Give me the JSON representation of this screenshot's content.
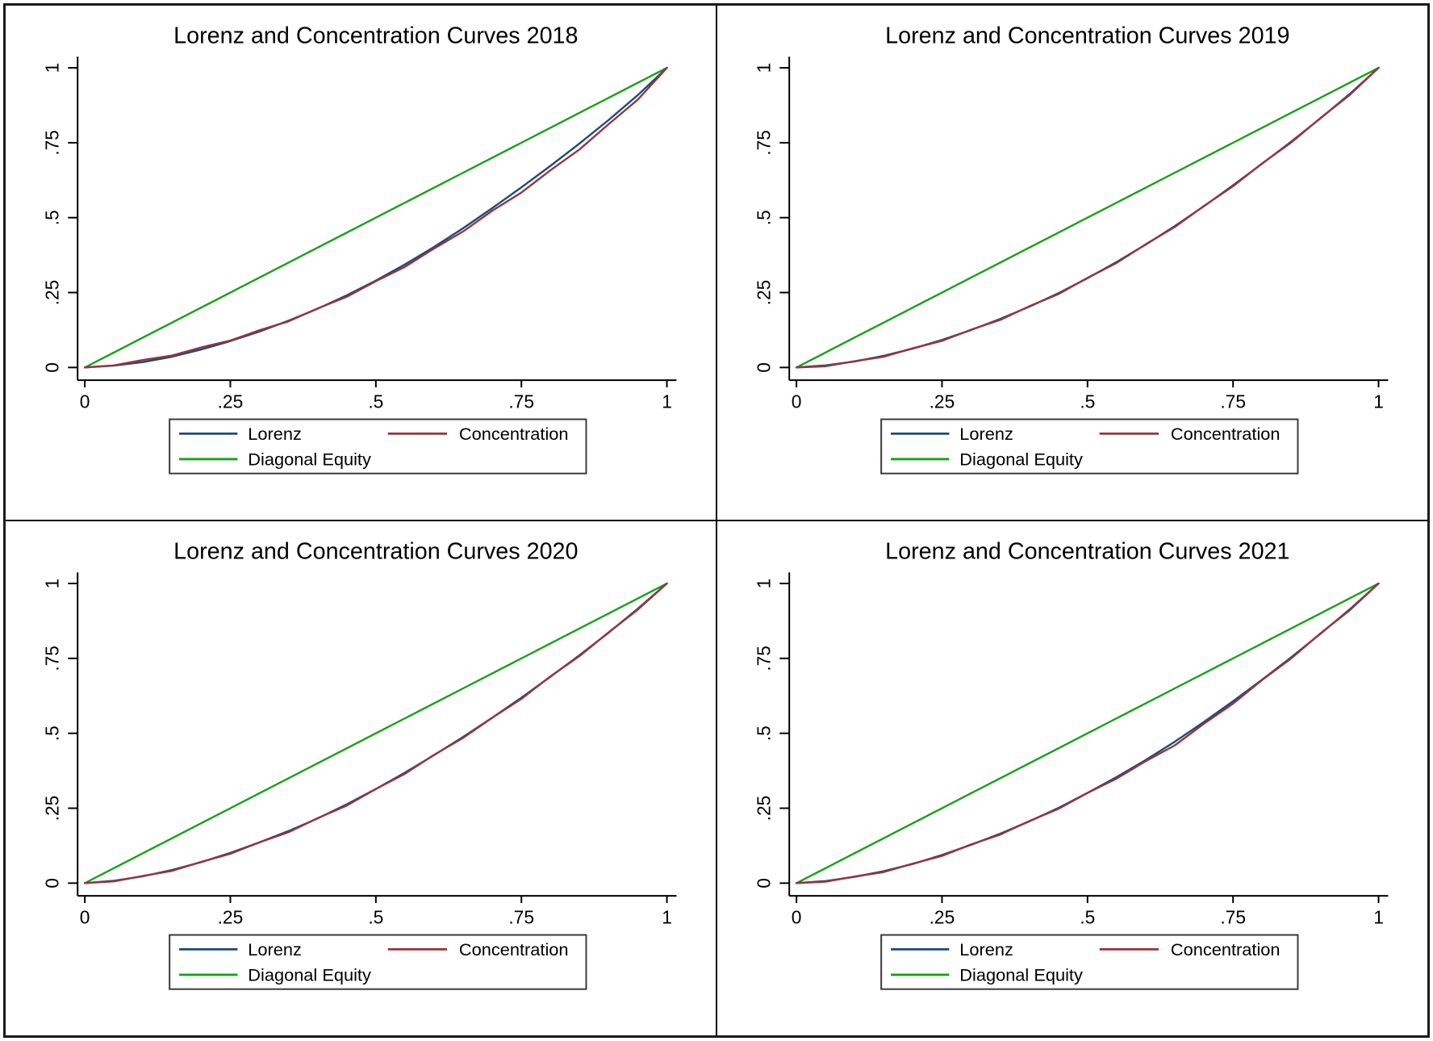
{
  "colors": {
    "title": "#1e3a66",
    "axis": "#000000",
    "lorenz": "#1d4a76",
    "concentration": "#94353d",
    "equity": "#18a018"
  },
  "axes": {
    "x_ticks": [
      "0",
      ".25",
      ".5",
      ".75",
      "1"
    ],
    "y_ticks": [
      "0",
      ".25",
      ".5",
      ".75",
      "1"
    ]
  },
  "legend": {
    "items": [
      {
        "label": "Lorenz",
        "color_key": "lorenz"
      },
      {
        "label": "Concentration",
        "color_key": "concentration"
      },
      {
        "label": "Diagonal Equity",
        "color_key": "equity"
      }
    ],
    "position": "below"
  },
  "chart_data": [
    {
      "type": "line",
      "title": "Lorenz and Concentration Curves 2018",
      "xlim": [
        0,
        1
      ],
      "ylim": [
        0,
        1
      ],
      "grid": false,
      "legend_position": "below",
      "x": [
        0,
        0.05,
        0.1,
        0.15,
        0.2,
        0.25,
        0.3,
        0.35,
        0.4,
        0.45,
        0.5,
        0.55,
        0.6,
        0.65,
        0.7,
        0.75,
        0.8,
        0.85,
        0.9,
        0.95,
        1
      ],
      "series": [
        {
          "name": "Lorenz",
          "color_key": "lorenz",
          "wiggle": false,
          "values": [
            0,
            0.006,
            0.018,
            0.036,
            0.06,
            0.088,
            0.12,
            0.156,
            0.196,
            0.241,
            0.29,
            0.344,
            0.402,
            0.465,
            0.532,
            0.601,
            0.673,
            0.748,
            0.826,
            0.909,
            1
          ]
        },
        {
          "name": "Concentration",
          "color_key": "concentration",
          "wiggle": true,
          "values": [
            0,
            0.009,
            0.023,
            0.042,
            0.065,
            0.092,
            0.122,
            0.156,
            0.195,
            0.238,
            0.286,
            0.338,
            0.395,
            0.456,
            0.521,
            0.586,
            0.656,
            0.73,
            0.81,
            0.896,
            1
          ]
        },
        {
          "name": "Diagonal Equity",
          "color_key": "equity",
          "wiggle": false,
          "values": [
            0,
            0.05,
            0.1,
            0.15,
            0.2,
            0.25,
            0.3,
            0.35,
            0.4,
            0.45,
            0.5,
            0.55,
            0.6,
            0.65,
            0.7,
            0.75,
            0.8,
            0.85,
            0.9,
            0.95,
            1
          ]
        }
      ]
    },
    {
      "type": "line",
      "title": "Lorenz and Concentration Curves 2019",
      "xlim": [
        0,
        1
      ],
      "ylim": [
        0,
        1
      ],
      "grid": false,
      "legend_position": "below",
      "x": [
        0,
        0.05,
        0.1,
        0.15,
        0.2,
        0.25,
        0.3,
        0.35,
        0.4,
        0.45,
        0.5,
        0.55,
        0.6,
        0.65,
        0.7,
        0.75,
        0.8,
        0.85,
        0.9,
        0.95,
        1
      ],
      "series": [
        {
          "name": "Lorenz",
          "color_key": "lorenz",
          "wiggle": false,
          "values": [
            0,
            0.007,
            0.02,
            0.039,
            0.063,
            0.092,
            0.125,
            0.162,
            0.203,
            0.248,
            0.298,
            0.352,
            0.41,
            0.472,
            0.538,
            0.608,
            0.68,
            0.754,
            0.831,
            0.912,
            1
          ]
        },
        {
          "name": "Concentration",
          "color_key": "concentration",
          "wiggle": true,
          "values": [
            0,
            0.006,
            0.019,
            0.038,
            0.062,
            0.091,
            0.124,
            0.161,
            0.202,
            0.247,
            0.297,
            0.351,
            0.409,
            0.471,
            0.537,
            0.607,
            0.679,
            0.753,
            0.83,
            0.911,
            1
          ]
        },
        {
          "name": "Diagonal Equity",
          "color_key": "equity",
          "wiggle": false,
          "values": [
            0,
            0.05,
            0.1,
            0.15,
            0.2,
            0.25,
            0.3,
            0.35,
            0.4,
            0.45,
            0.5,
            0.55,
            0.6,
            0.65,
            0.7,
            0.75,
            0.8,
            0.85,
            0.9,
            0.95,
            1
          ]
        }
      ]
    },
    {
      "type": "line",
      "title": "Lorenz and Concentration Curves 2020",
      "xlim": [
        0,
        1
      ],
      "ylim": [
        0,
        1
      ],
      "grid": false,
      "legend_position": "below",
      "x": [
        0,
        0.05,
        0.1,
        0.15,
        0.2,
        0.25,
        0.3,
        0.35,
        0.4,
        0.45,
        0.5,
        0.55,
        0.6,
        0.65,
        0.7,
        0.75,
        0.8,
        0.85,
        0.9,
        0.95,
        1
      ],
      "series": [
        {
          "name": "Lorenz",
          "color_key": "lorenz",
          "wiggle": false,
          "values": [
            0,
            0.008,
            0.023,
            0.044,
            0.07,
            0.101,
            0.136,
            0.174,
            0.216,
            0.263,
            0.314,
            0.369,
            0.427,
            0.488,
            0.552,
            0.619,
            0.689,
            0.761,
            0.836,
            0.916,
            1
          ]
        },
        {
          "name": "Concentration",
          "color_key": "concentration",
          "wiggle": true,
          "values": [
            0,
            0.008,
            0.022,
            0.043,
            0.069,
            0.1,
            0.134,
            0.172,
            0.215,
            0.261,
            0.312,
            0.367,
            0.426,
            0.487,
            0.55,
            0.617,
            0.688,
            0.76,
            0.835,
            0.915,
            1
          ]
        },
        {
          "name": "Diagonal Equity",
          "color_key": "equity",
          "wiggle": false,
          "values": [
            0,
            0.05,
            0.1,
            0.15,
            0.2,
            0.25,
            0.3,
            0.35,
            0.4,
            0.45,
            0.5,
            0.55,
            0.6,
            0.65,
            0.7,
            0.75,
            0.8,
            0.85,
            0.9,
            0.95,
            1
          ]
        }
      ]
    },
    {
      "type": "line",
      "title": "Lorenz and Concentration Curves 2021",
      "xlim": [
        0,
        1
      ],
      "ylim": [
        0,
        1
      ],
      "grid": false,
      "legend_position": "below",
      "x": [
        0,
        0.05,
        0.1,
        0.15,
        0.2,
        0.25,
        0.3,
        0.35,
        0.4,
        0.45,
        0.5,
        0.55,
        0.6,
        0.65,
        0.7,
        0.75,
        0.8,
        0.85,
        0.9,
        0.95,
        1
      ],
      "series": [
        {
          "name": "Lorenz",
          "color_key": "lorenz",
          "wiggle": false,
          "values": [
            0,
            0.007,
            0.021,
            0.04,
            0.064,
            0.094,
            0.128,
            0.165,
            0.206,
            0.251,
            0.301,
            0.354,
            0.411,
            0.472,
            0.538,
            0.607,
            0.679,
            0.754,
            0.832,
            0.913,
            1
          ]
        },
        {
          "name": "Concentration",
          "color_key": "concentration",
          "wiggle": true,
          "values": [
            0,
            0.007,
            0.02,
            0.039,
            0.063,
            0.093,
            0.127,
            0.164,
            0.205,
            0.25,
            0.299,
            0.351,
            0.405,
            0.462,
            0.53,
            0.601,
            0.676,
            0.752,
            0.831,
            0.912,
            1
          ]
        },
        {
          "name": "Diagonal Equity",
          "color_key": "equity",
          "wiggle": false,
          "values": [
            0,
            0.05,
            0.1,
            0.15,
            0.2,
            0.25,
            0.3,
            0.35,
            0.4,
            0.45,
            0.5,
            0.55,
            0.6,
            0.65,
            0.7,
            0.75,
            0.8,
            0.85,
            0.9,
            0.95,
            1
          ]
        }
      ]
    }
  ]
}
